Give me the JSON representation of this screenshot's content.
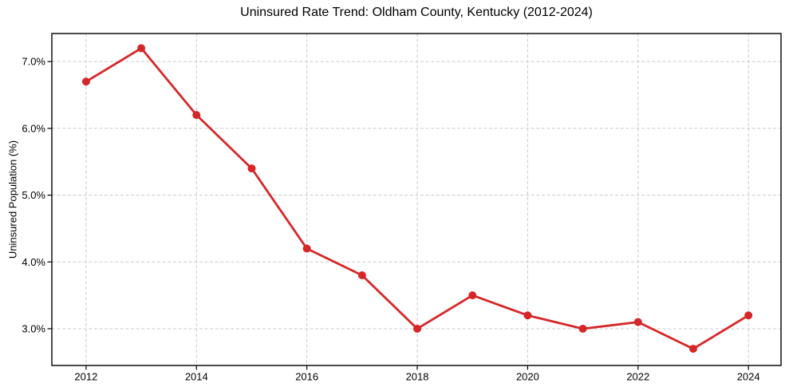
{
  "chart_data": {
    "type": "line",
    "title": "Uninsured Rate Trend: Oldham County, Kentucky (2012-2024)",
    "xlabel": "",
    "ylabel": "Uninsured Population (%)",
    "series": [
      {
        "name": "Uninsured rate",
        "x": [
          2012,
          2013,
          2014,
          2015,
          2016,
          2017,
          2018,
          2019,
          2020,
          2021,
          2022,
          2023,
          2024
        ],
        "y": [
          6.7,
          7.2,
          6.2,
          5.4,
          4.2,
          3.8,
          3.0,
          3.5,
          3.2,
          3.0,
          3.1,
          2.7,
          3.2
        ]
      }
    ],
    "xticks": [
      2012,
      2014,
      2016,
      2018,
      2020,
      2022,
      2024
    ],
    "xtick_labels": [
      "2012",
      "2014",
      "2016",
      "2018",
      "2020",
      "2022",
      "2024"
    ],
    "yticks": [
      3.0,
      4.0,
      5.0,
      6.0,
      7.0
    ],
    "ytick_labels": [
      "3.0%",
      "4.0%",
      "5.0%",
      "6.0%",
      "7.0%"
    ],
    "xlim": [
      2011.38,
      2024.59
    ],
    "ylim": [
      2.45,
      7.42
    ],
    "grid": true,
    "grid_style": "dashed",
    "legend": false,
    "colors": {
      "line": "#d62728",
      "marker": "#d62728",
      "grid": "#cbcbcb",
      "spine": "#000000",
      "background": "#ffffff"
    }
  }
}
